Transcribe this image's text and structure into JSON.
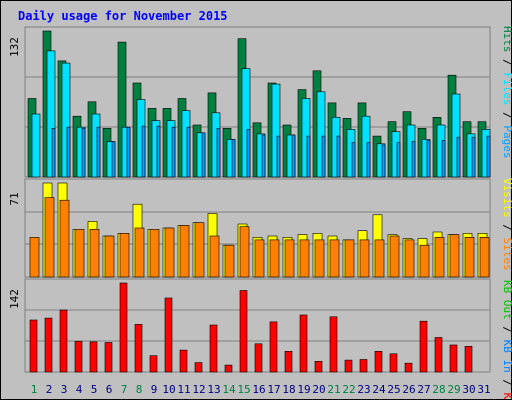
{
  "chart_data": {
    "title": "Daily usage for November 2015",
    "days": [
      "1",
      "2",
      "3",
      "4",
      "5",
      "6",
      "7",
      "8",
      "9",
      "10",
      "11",
      "12",
      "13",
      "14",
      "15",
      "16",
      "17",
      "18",
      "19",
      "20",
      "21",
      "22",
      "23",
      "24",
      "25",
      "26",
      "27",
      "28",
      "29",
      "30",
      "31"
    ],
    "weekend_days": [
      "1",
      "7",
      "8",
      "14",
      "15",
      "21",
      "22",
      "28",
      "29"
    ],
    "panels": [
      {
        "type": "bar",
        "ymax_label": "132",
        "ymax": 132,
        "series": [
          {
            "name": "Hits",
            "color": "#008040",
            "values": [
              71,
              132,
              105,
              55,
              68,
              44,
              122,
              85,
              62,
              62,
              71,
              47,
              76,
              44,
              125,
              49,
              85,
              47,
              79,
              96,
              67,
              53,
              67,
              37,
              50,
              59,
              44,
              54,
              92,
              50,
              50
            ]
          },
          {
            "name": "Files",
            "color": "#00e0ff",
            "values": [
              57,
              114,
              103,
              45,
              57,
              32,
              45,
              70,
              51,
              51,
              60,
              40,
              58,
              34,
              98,
              39,
              84,
              38,
              71,
              77,
              54,
              43,
              55,
              30,
              41,
              47,
              34,
              47,
              75,
              39,
              43
            ]
          },
          {
            "name": "Pages",
            "color": "#00a0ff",
            "values": [
              0,
              44,
              45,
              44,
              45,
              32,
              45,
              46,
              46,
              45,
              45,
              40,
              44,
              34,
              43,
              38,
              37,
              38,
              37,
              37,
              37,
              31,
              31,
              29,
              31,
              32,
              33,
              33,
              36,
              36,
              37
            ]
          }
        ]
      },
      {
        "type": "bar",
        "ymax_label": "71",
        "ymax": 71,
        "series": [
          {
            "name": "Visits",
            "color": "#ffff00",
            "values": [
              0,
              71,
              71,
              36,
              42,
              31,
              33,
              55,
              36,
              37,
              39,
              41,
              48,
              24,
              40,
              30,
              31,
              30,
              32,
              33,
              31,
              28,
              35,
              47,
              32,
              29,
              29,
              34,
              32,
              33,
              33
            ]
          },
          {
            "name": "Sites",
            "color": "#ff8000",
            "values": [
              30,
              60,
              58,
              36,
              36,
              31,
              33,
              37,
              36,
              37,
              39,
              41,
              31,
              24,
              38,
              28,
              28,
              28,
              28,
              28,
              28,
              28,
              28,
              28,
              31,
              28,
              24,
              30,
              32,
              30,
              30
            ]
          }
        ]
      },
      {
        "type": "bar",
        "ymax_label": "142",
        "ymax": 142,
        "series": [
          {
            "name": "KB F",
            "color": "#ff0000",
            "values": [
              83,
              86,
              99,
              49,
              48,
              47,
              142,
              76,
              26,
              118,
              35,
              15,
              75,
              11,
              130,
              45,
              80,
              33,
              91,
              17,
              88,
              19,
              20,
              33,
              29,
              14,
              81,
              55,
              43,
              41,
              0
            ]
          }
        ]
      }
    ],
    "side_labels": {
      "top": [
        {
          "text": "Hits",
          "color": "#008040"
        },
        {
          "text": " / ",
          "color": "#000000"
        },
        {
          "text": "Files",
          "color": "#00e0ff"
        },
        {
          "text": " / ",
          "color": "#000000"
        },
        {
          "text": "Pages",
          "color": "#00a0ff"
        }
      ],
      "middle": [
        {
          "text": "Visits",
          "color": "#ffff00"
        },
        {
          "text": " / ",
          "color": "#000000"
        },
        {
          "text": "Sites",
          "color": "#ff8000"
        }
      ],
      "bottom": [
        {
          "text": "KB Out",
          "color": "#00c000"
        },
        {
          "text": " / ",
          "color": "#000000"
        },
        {
          "text": "KB In",
          "color": "#0080ff"
        },
        {
          "text": " / ",
          "color": "#000000"
        },
        {
          "text": "KB F",
          "color": "#ff0000"
        }
      ]
    },
    "colors": {
      "background": "#c0c0c0",
      "weekday": "#000080",
      "weekend": "#008040"
    }
  }
}
